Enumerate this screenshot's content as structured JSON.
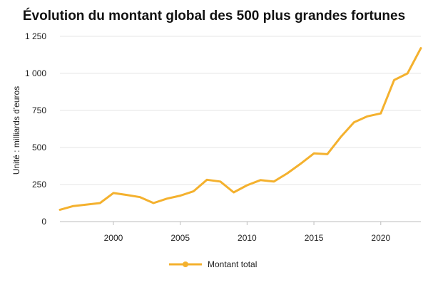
{
  "chart_data": {
    "type": "line",
    "title": "Évolution du montant global des 500 plus grandes fortunes",
    "xlabel": "",
    "ylabel": "Unité : milliards d'euros",
    "xlim": [
      1996,
      2023
    ],
    "ylim": [
      0,
      1250
    ],
    "x_ticks": [
      2000,
      2005,
      2010,
      2015,
      2020
    ],
    "y_ticks": [
      0,
      250,
      500,
      750,
      1000,
      1250
    ],
    "y_tick_labels": [
      "0",
      "250",
      "500",
      "750",
      "1 000",
      "1 250"
    ],
    "grid": "horizontal",
    "legend_position": "bottom",
    "series": [
      {
        "name": "Montant total",
        "color": "#f4b12e",
        "x": [
          1996,
          1997,
          1998,
          1999,
          2000,
          2001,
          2002,
          2003,
          2004,
          2005,
          2006,
          2007,
          2008,
          2009,
          2010,
          2011,
          2012,
          2013,
          2014,
          2015,
          2016,
          2017,
          2018,
          2019,
          2020,
          2021,
          2022,
          2023
        ],
        "y": [
          80,
          105,
          115,
          125,
          193,
          180,
          165,
          125,
          155,
          175,
          205,
          282,
          270,
          197,
          245,
          280,
          270,
          325,
          390,
          460,
          455,
          570,
          670,
          710,
          730,
          955,
          1000,
          1170
        ]
      }
    ]
  }
}
